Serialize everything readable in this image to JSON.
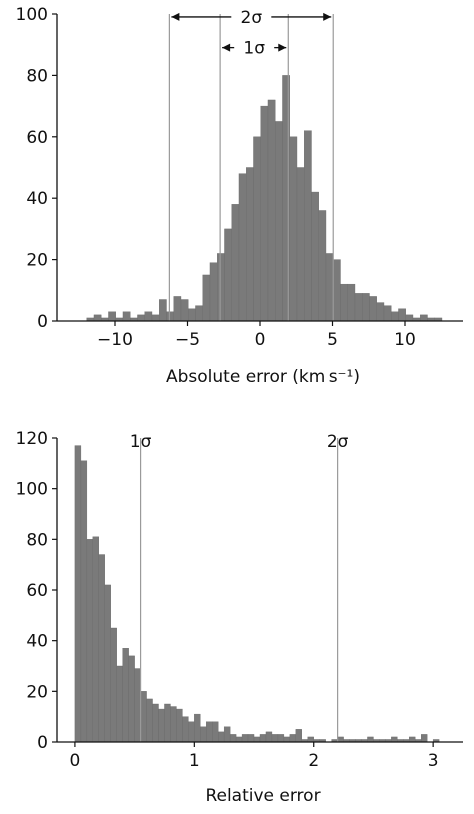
{
  "chart_data": [
    {
      "type": "histogram",
      "xlabel": "Absolute error (km s⁻¹)",
      "ylabel": "",
      "xlim": [
        -14,
        14
      ],
      "ylim": [
        0,
        100
      ],
      "xticks": [
        -10,
        -5,
        0,
        5,
        10
      ],
      "xtick_labels": [
        "−10",
        "−5",
        "0",
        "5",
        "10"
      ],
      "yticks": [
        0,
        20,
        40,
        60,
        80,
        100
      ],
      "ytick_labels": [
        "0",
        "20",
        "40",
        "60",
        "80",
        "100"
      ],
      "bin_width": 0.5,
      "bins": [
        {
          "x": -11.7,
          "y": 1
        },
        {
          "x": -11.2,
          "y": 2
        },
        {
          "x": -10.7,
          "y": 1
        },
        {
          "x": -10.2,
          "y": 3
        },
        {
          "x": -9.7,
          "y": 1
        },
        {
          "x": -9.2,
          "y": 3
        },
        {
          "x": -8.7,
          "y": 1
        },
        {
          "x": -8.2,
          "y": 2
        },
        {
          "x": -7.7,
          "y": 3
        },
        {
          "x": -7.2,
          "y": 2
        },
        {
          "x": -6.7,
          "y": 7
        },
        {
          "x": -6.2,
          "y": 3
        },
        {
          "x": -5.7,
          "y": 8
        },
        {
          "x": -5.2,
          "y": 7
        },
        {
          "x": -4.7,
          "y": 4
        },
        {
          "x": -4.2,
          "y": 5
        },
        {
          "x": -3.7,
          "y": 15
        },
        {
          "x": -3.2,
          "y": 19
        },
        {
          "x": -2.7,
          "y": 22
        },
        {
          "x": -2.2,
          "y": 30
        },
        {
          "x": -1.7,
          "y": 38
        },
        {
          "x": -1.2,
          "y": 48
        },
        {
          "x": -0.7,
          "y": 50
        },
        {
          "x": -0.2,
          "y": 60
        },
        {
          "x": 0.3,
          "y": 70
        },
        {
          "x": 0.8,
          "y": 72
        },
        {
          "x": 1.3,
          "y": 65
        },
        {
          "x": 1.8,
          "y": 80
        },
        {
          "x": 2.3,
          "y": 60
        },
        {
          "x": 2.8,
          "y": 50
        },
        {
          "x": 3.3,
          "y": 62
        },
        {
          "x": 3.8,
          "y": 42
        },
        {
          "x": 4.3,
          "y": 36
        },
        {
          "x": 4.8,
          "y": 22
        },
        {
          "x": 5.3,
          "y": 20
        },
        {
          "x": 5.8,
          "y": 12
        },
        {
          "x": 6.3,
          "y": 12
        },
        {
          "x": 6.8,
          "y": 9
        },
        {
          "x": 7.3,
          "y": 9
        },
        {
          "x": 7.8,
          "y": 8
        },
        {
          "x": 8.3,
          "y": 6
        },
        {
          "x": 8.8,
          "y": 5
        },
        {
          "x": 9.3,
          "y": 3
        },
        {
          "x": 9.8,
          "y": 4
        },
        {
          "x": 10.3,
          "y": 2
        },
        {
          "x": 10.8,
          "y": 1
        },
        {
          "x": 11.3,
          "y": 2
        },
        {
          "x": 11.8,
          "y": 1
        },
        {
          "x": 12.3,
          "y": 1
        }
      ],
      "sigma_lines": [
        -6.25,
        -2.75,
        1.95,
        5.05
      ],
      "annotations": [
        {
          "label": "2σ",
          "from": -6.25,
          "to": 5.05,
          "y": 101
        },
        {
          "label": "1σ",
          "from": -2.75,
          "to": 1.95,
          "y": 91
        }
      ],
      "grid": false,
      "legend": "none"
    },
    {
      "type": "histogram",
      "xlabel": "Relative error",
      "ylabel": "",
      "xlim": [
        -0.15,
        3.25
      ],
      "ylim": [
        0,
        120
      ],
      "xticks": [
        0,
        1,
        2,
        3
      ],
      "xtick_labels": [
        "0",
        "1",
        "2",
        "3"
      ],
      "yticks": [
        0,
        20,
        40,
        60,
        80,
        100,
        120
      ],
      "ytick_labels": [
        "0",
        "20",
        "40",
        "60",
        "80",
        "100",
        "120"
      ],
      "bin_width": 0.05,
      "bins": [
        {
          "x": 0.025,
          "y": 117
        },
        {
          "x": 0.075,
          "y": 111
        },
        {
          "x": 0.125,
          "y": 80
        },
        {
          "x": 0.175,
          "y": 81
        },
        {
          "x": 0.225,
          "y": 74
        },
        {
          "x": 0.275,
          "y": 62
        },
        {
          "x": 0.325,
          "y": 45
        },
        {
          "x": 0.375,
          "y": 30
        },
        {
          "x": 0.425,
          "y": 37
        },
        {
          "x": 0.475,
          "y": 34
        },
        {
          "x": 0.525,
          "y": 29
        },
        {
          "x": 0.575,
          "y": 20
        },
        {
          "x": 0.625,
          "y": 17
        },
        {
          "x": 0.675,
          "y": 15
        },
        {
          "x": 0.725,
          "y": 13
        },
        {
          "x": 0.775,
          "y": 15
        },
        {
          "x": 0.825,
          "y": 14
        },
        {
          "x": 0.875,
          "y": 13
        },
        {
          "x": 0.925,
          "y": 10
        },
        {
          "x": 0.975,
          "y": 8
        },
        {
          "x": 1.025,
          "y": 11
        },
        {
          "x": 1.075,
          "y": 6
        },
        {
          "x": 1.125,
          "y": 8
        },
        {
          "x": 1.175,
          "y": 8
        },
        {
          "x": 1.225,
          "y": 4
        },
        {
          "x": 1.275,
          "y": 6
        },
        {
          "x": 1.325,
          "y": 3
        },
        {
          "x": 1.375,
          "y": 2
        },
        {
          "x": 1.425,
          "y": 3
        },
        {
          "x": 1.475,
          "y": 3
        },
        {
          "x": 1.525,
          "y": 2
        },
        {
          "x": 1.575,
          "y": 3
        },
        {
          "x": 1.625,
          "y": 4
        },
        {
          "x": 1.675,
          "y": 3
        },
        {
          "x": 1.725,
          "y": 3
        },
        {
          "x": 1.775,
          "y": 2
        },
        {
          "x": 1.825,
          "y": 3
        },
        {
          "x": 1.875,
          "y": 5
        },
        {
          "x": 1.925,
          "y": 1
        },
        {
          "x": 1.975,
          "y": 2
        },
        {
          "x": 2.025,
          "y": 1
        },
        {
          "x": 2.075,
          "y": 1
        },
        {
          "x": 2.175,
          "y": 1
        },
        {
          "x": 2.225,
          "y": 2
        },
        {
          "x": 2.275,
          "y": 1
        },
        {
          "x": 2.325,
          "y": 1
        },
        {
          "x": 2.375,
          "y": 1
        },
        {
          "x": 2.425,
          "y": 1
        },
        {
          "x": 2.475,
          "y": 2
        },
        {
          "x": 2.525,
          "y": 1
        },
        {
          "x": 2.575,
          "y": 1
        },
        {
          "x": 2.625,
          "y": 1
        },
        {
          "x": 2.675,
          "y": 2
        },
        {
          "x": 2.725,
          "y": 1
        },
        {
          "x": 2.775,
          "y": 1
        },
        {
          "x": 2.825,
          "y": 2
        },
        {
          "x": 2.875,
          "y": 1
        },
        {
          "x": 2.925,
          "y": 3
        },
        {
          "x": 3.025,
          "y": 1
        }
      ],
      "sigma_lines": [
        0.55,
        2.2
      ],
      "annotations": [
        {
          "label": "1σ",
          "x": 0.55,
          "y": 118
        },
        {
          "label": "2σ",
          "x": 2.2,
          "y": 118
        }
      ],
      "grid": false,
      "legend": "none"
    }
  ]
}
